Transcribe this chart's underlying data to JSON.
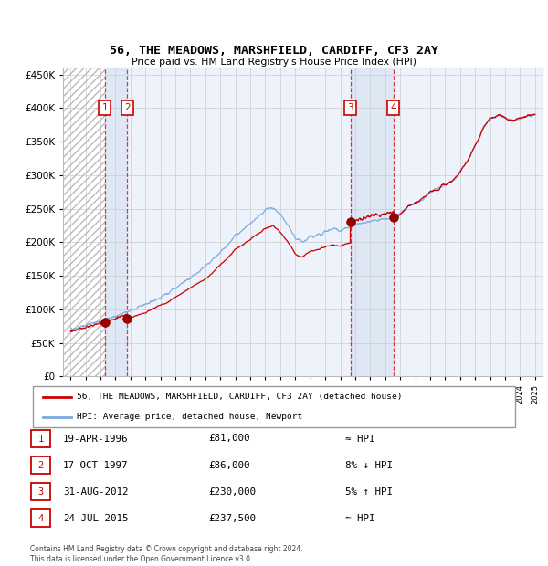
{
  "title1": "56, THE MEADOWS, MARSHFIELD, CARDIFF, CF3 2AY",
  "title2": "Price paid vs. HM Land Registry's House Price Index (HPI)",
  "background_color": "#ffffff",
  "plot_bg_color": "#eef2fa",
  "hpi_line_color": "#7aaadd",
  "price_line_color": "#cc0000",
  "sale_dot_color": "#990000",
  "vline_color": "#cc0000",
  "span_color": "#d0e0f0",
  "transactions": [
    {
      "num": 1,
      "date_str": "19-APR-1996",
      "year": 1996.29,
      "price": 81000,
      "label": "≈ HPI"
    },
    {
      "num": 2,
      "date_str": "17-OCT-1997",
      "year": 1997.79,
      "price": 86000,
      "label": "8% ↓ HPI"
    },
    {
      "num": 3,
      "date_str": "31-AUG-2012",
      "year": 2012.67,
      "price": 230000,
      "label": "5% ↑ HPI"
    },
    {
      "num": 4,
      "date_str": "24-JUL-2015",
      "year": 2015.56,
      "price": 237500,
      "label": "≈ HPI"
    }
  ],
  "legend_label1": "56, THE MEADOWS, MARSHFIELD, CARDIFF, CF3 2AY (detached house)",
  "legend_label2": "HPI: Average price, detached house, Newport",
  "table_rows": [
    {
      "num": "1",
      "date": "19-APR-1996",
      "price": "£81,000",
      "rel": "≈ HPI"
    },
    {
      "num": "2",
      "date": "17-OCT-1997",
      "price": "£86,000",
      "rel": "8% ↓ HPI"
    },
    {
      "num": "3",
      "date": "31-AUG-2012",
      "price": "£230,000",
      "rel": "5% ↑ HPI"
    },
    {
      "num": "4",
      "date": "24-JUL-2015",
      "price": "£237,500",
      "rel": "≈ HPI"
    }
  ],
  "footnote": "Contains HM Land Registry data © Crown copyright and database right 2024.\nThis data is licensed under the Open Government Licence v3.0.",
  "ylim": [
    0,
    460000
  ],
  "yticks": [
    0,
    50000,
    100000,
    150000,
    200000,
    250000,
    300000,
    350000,
    400000,
    450000
  ],
  "xlim_start": 1993.5,
  "xlim_end": 2025.5,
  "xtick_start": 1994,
  "xtick_end": 2025
}
